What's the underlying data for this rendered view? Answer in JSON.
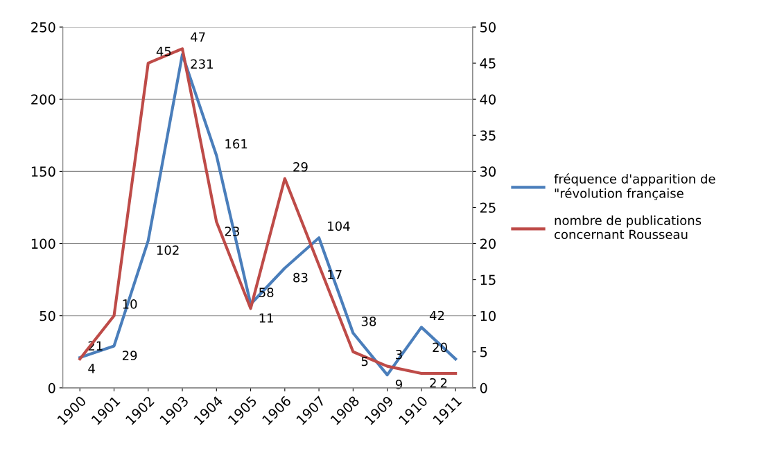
{
  "chart_data": {
    "type": "line",
    "categories": [
      "1900",
      "1901",
      "1902",
      "1903",
      "1904",
      "1905",
      "1906",
      "1907",
      "1908",
      "1909",
      "1910",
      "1911"
    ],
    "series": [
      {
        "name": "fréquence d'apparition de \"révolution française",
        "color": "#4a7ebb",
        "values": [
          21,
          29,
          102,
          231,
          161,
          58,
          83,
          104,
          38,
          9,
          42,
          20
        ]
      },
      {
        "name": "nombre de publications concernant Rousseau",
        "color": "#be4b48",
        "axis": "y2",
        "values": [
          4,
          10,
          45,
          47,
          23,
          11,
          29,
          17,
          5,
          3,
          2,
          2
        ]
      }
    ],
    "ylim": [
      0,
      250
    ],
    "yticks": [
      0,
      50,
      100,
      150,
      200,
      250
    ],
    "y2lim": [
      0,
      50
    ],
    "y2ticks": [
      0,
      5,
      10,
      15,
      20,
      25,
      30,
      35,
      40,
      45,
      50
    ],
    "grid": "y",
    "legend": "right",
    "data_labels": true,
    "marker": "none",
    "line_style": "solid"
  }
}
